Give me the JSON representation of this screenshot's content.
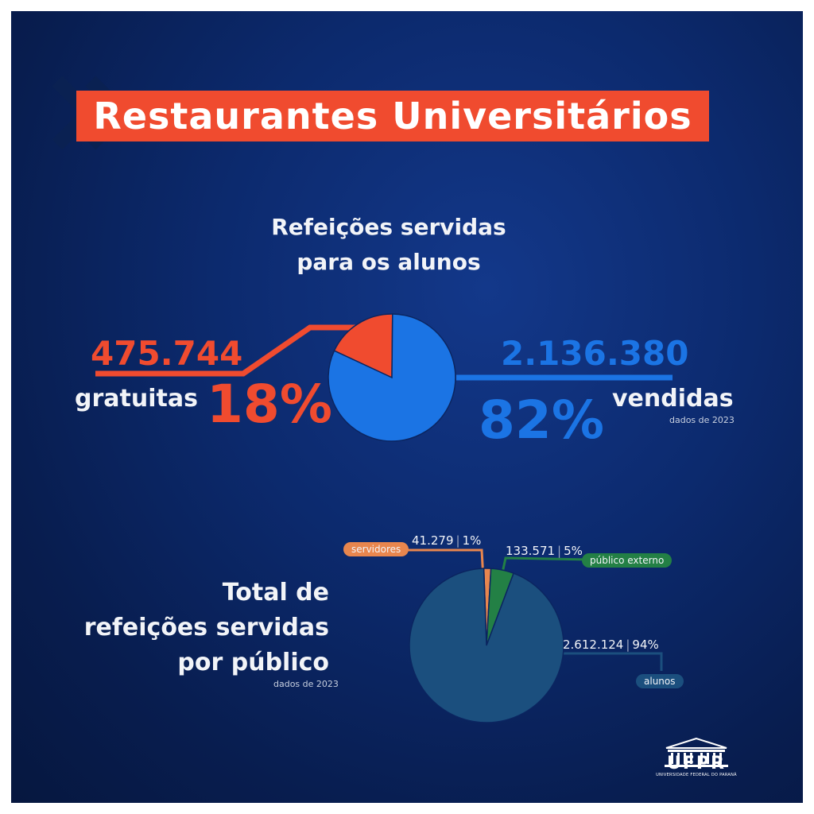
{
  "title": "Restaurantes Universitários",
  "section1": {
    "title_line1": "Refeições servidas",
    "title_line2": "para os alunos",
    "free_count": "475.744",
    "free_label": "gratuitas",
    "free_pct": "18%",
    "sold_count": "2.136.380",
    "sold_label": "vendidas",
    "sold_pct": "82%",
    "source": "dados de 2023"
  },
  "section2": {
    "title_line1": "Total de",
    "title_line2": "refeições servidas",
    "title_line3": "por público",
    "source": "dados de 2023",
    "servidores": {
      "label": "servidores",
      "value": "41.279",
      "pct": "1%"
    },
    "publico": {
      "label": "público externo",
      "value": "133.571",
      "pct": "5%"
    },
    "alunos": {
      "label": "alunos",
      "value": "2.612.124",
      "pct": "94%"
    }
  },
  "logo": {
    "name": "UFPR",
    "subtitle": "UNIVERSIDADE FEDERAL DO PARANÁ"
  },
  "colors": {
    "accent_red": "#f04b2f",
    "accent_blue": "#1b74e4",
    "alunos": "#1b4f7e",
    "publico": "#238045",
    "servidores": "#e8864e"
  },
  "chart_data": [
    {
      "type": "pie",
      "title": "Refeições servidas para os alunos",
      "categories": [
        "gratuitas",
        "vendidas"
      ],
      "values": [
        475744,
        2136380
      ],
      "percent": [
        18,
        82
      ],
      "colors": [
        "#f04b2f",
        "#1b74e4"
      ]
    },
    {
      "type": "pie",
      "title": "Total de refeições servidas por público",
      "categories": [
        "servidores",
        "público externo",
        "alunos"
      ],
      "values": [
        41279,
        133571,
        2612124
      ],
      "percent": [
        1,
        5,
        94
      ],
      "colors": [
        "#e8864e",
        "#238045",
        "#1b4f7e"
      ]
    }
  ]
}
